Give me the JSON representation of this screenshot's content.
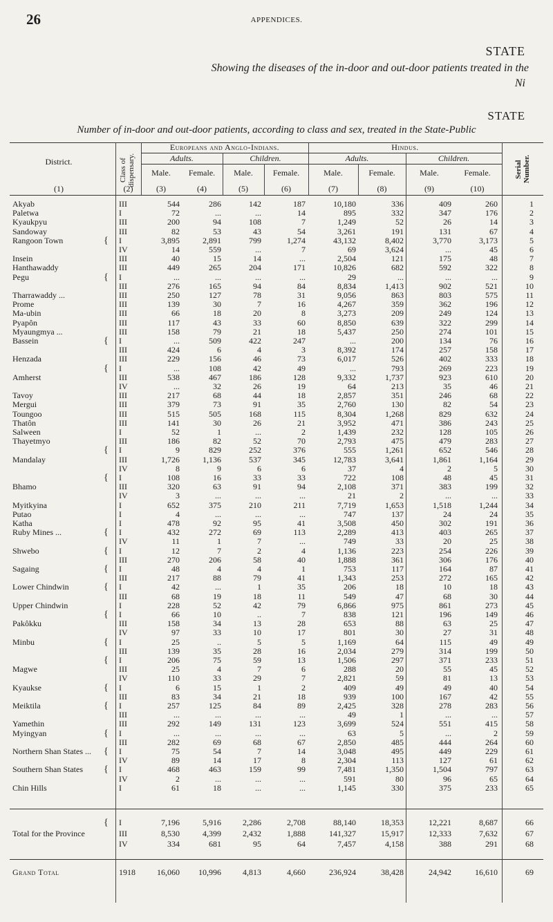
{
  "page": {
    "number": "26",
    "running_head": "APPENDICES.",
    "state_top": "STATE",
    "caption_top": "Showing the diseases of the in-door and out-door patients treated in the",
    "ni": "Ni",
    "state_bottom": "STATE",
    "caption_main": "Number of in-door and out-door patients, according to class and sex, treated in the State-Public"
  },
  "header": {
    "district": "District.",
    "class_of_dispensary": "Class of dispensary.",
    "europeans": "Europeans and Anglo-Indians.",
    "hindus": "Hindus.",
    "adults": "Adults.",
    "children": "Children.",
    "male": "Male.",
    "female": "Female.",
    "serial_number": "Serial Number.",
    "col_nums": [
      "(1)",
      "(2)",
      "(3)",
      "(4)",
      "(5)",
      "(6)",
      "(7)",
      "(8)",
      "(9)",
      "(10)"
    ]
  },
  "rows": [
    {
      "district": "Akyab",
      "brace": "",
      "cls": "III",
      "c3": "544",
      "c4": "286",
      "c5": "142",
      "c6": "187",
      "c7": "10,180",
      "c8": "336",
      "c9": "409",
      "c10": "260",
      "serial": "1"
    },
    {
      "district": "Paletwa",
      "brace": "",
      "cls": "I",
      "c3": "72",
      "c4": "...",
      "c5": "...",
      "c6": "14",
      "c7": "895",
      "c8": "332",
      "c9": "347",
      "c10": "176",
      "serial": "2"
    },
    {
      "district": "Kyaukpyu",
      "brace": "",
      "cls": "III",
      "c3": "200",
      "c4": "94",
      "c5": "108",
      "c6": "7",
      "c7": "1,249",
      "c8": "52",
      "c9": "26",
      "c10": "14",
      "serial": "3"
    },
    {
      "district": "Sandoway",
      "brace": "",
      "cls": "III",
      "c3": "82",
      "c4": "53",
      "c5": "43",
      "c6": "54",
      "c7": "3,261",
      "c8": "191",
      "c9": "131",
      "c10": "67",
      "serial": "4"
    },
    {
      "district": "Rangoon Town",
      "brace": "{",
      "cls": "I",
      "c3": "3,895",
      "c4": "2,891",
      "c5": "799",
      "c6": "1,274",
      "c7": "43,132",
      "c8": "8,402",
      "c9": "3,770",
      "c10": "3,173",
      "serial": "5"
    },
    {
      "district": "",
      "brace": "",
      "cls": "IV",
      "c3": "14",
      "c4": "559",
      "c5": "...",
      "c6": "7",
      "c7": "69",
      "c8": "3,624",
      "c9": "...",
      "c10": "45",
      "serial": "6"
    },
    {
      "district": "Insein",
      "brace": "",
      "cls": "III",
      "c3": "40",
      "c4": "15",
      "c5": "14",
      "c6": "...",
      "c7": "2,504",
      "c8": "121",
      "c9": "175",
      "c10": "48",
      "serial": "7"
    },
    {
      "district": "Hanthawaddy",
      "brace": "",
      "cls": "III",
      "c3": "449",
      "c4": "265",
      "c5": "204",
      "c6": "171",
      "c7": "10,826",
      "c8": "682",
      "c9": "592",
      "c10": "322",
      "serial": "8"
    },
    {
      "district": "Pegu",
      "brace": "{",
      "cls": "I",
      "c3": "...",
      "c4": "...",
      "c5": "...",
      "c6": "...",
      "c7": "29",
      "c8": "...",
      "c9": "...",
      "c10": "...",
      "serial": "9"
    },
    {
      "district": "",
      "brace": "",
      "cls": "III",
      "c3": "276",
      "c4": "165",
      "c5": "94",
      "c6": "84",
      "c7": "8,834",
      "c8": "1,413",
      "c9": "902",
      "c10": "521",
      "serial": "10"
    },
    {
      "district": "Tharrawaddy ...",
      "brace": "",
      "cls": "III",
      "c3": "250",
      "c4": "127",
      "c5": "78",
      "c6": "31",
      "c7": "9,056",
      "c8": "863",
      "c9": "803",
      "c10": "575",
      "serial": "11"
    },
    {
      "district": "Prome",
      "brace": "",
      "cls": "III",
      "c3": "139",
      "c4": "30",
      "c5": "7",
      "c6": "16",
      "c7": "4,267",
      "c8": "359",
      "c9": "362",
      "c10": "196",
      "serial": "12"
    },
    {
      "district": "Ma-ubin",
      "brace": "",
      "cls": "III",
      "c3": "66",
      "c4": "18",
      "c5": "20",
      "c6": "8",
      "c7": "3,273",
      "c8": "209",
      "c9": "249",
      "c10": "124",
      "serial": "13"
    },
    {
      "district": "Pyapôn",
      "brace": "",
      "cls": "III",
      "c3": "117",
      "c4": "43",
      "c5": "33",
      "c6": "60",
      "c7": "8,850",
      "c8": "639",
      "c9": "322",
      "c10": "299",
      "serial": "14"
    },
    {
      "district": "Myaungmya ...",
      "brace": "",
      "cls": "III",
      "c3": "158",
      "c4": "79",
      "c5": "21",
      "c6": "18",
      "c7": "5,437",
      "c8": "250",
      "c9": "274",
      "c10": "101",
      "serial": "15"
    },
    {
      "district": "Bassein",
      "brace": "{",
      "cls": "I",
      "c3": "...",
      "c4": "509",
      "c5": "422",
      "c6": "247",
      "c7": "...",
      "c8": "200",
      "c9": "134",
      "c10": "76",
      "serial": "16"
    },
    {
      "district": "",
      "brace": "",
      "cls": "III",
      "c3": "424",
      "c4": "6",
      "c5": "4",
      "c6": "3",
      "c7": "8,392",
      "c8": "174",
      "c9": "257",
      "c10": "158",
      "serial": "17"
    },
    {
      "district": "Henzada",
      "brace": "",
      "cls": "III",
      "c3": "229",
      "c4": "156",
      "c5": "46",
      "c6": "73",
      "c7": "6,017",
      "c8": "526",
      "c9": "402",
      "c10": "333",
      "serial": "18"
    },
    {
      "district": "",
      "brace": "{",
      "cls": "I",
      "c3": "...",
      "c4": "108",
      "c5": "42",
      "c6": "49",
      "c7": "...",
      "c8": "793",
      "c9": "269",
      "c10": "223",
      "serial": "19"
    },
    {
      "district": "Amherst",
      "brace": "",
      "cls": "III",
      "c3": "538",
      "c4": "467",
      "c5": "186",
      "c6": "128",
      "c7": "9,332",
      "c8": "1,737",
      "c9": "923",
      "c10": "610",
      "serial": "20"
    },
    {
      "district": "",
      "brace": "",
      "cls": "IV",
      "c3": "...",
      "c4": "32",
      "c5": "26",
      "c6": "19",
      "c7": "64",
      "c8": "213",
      "c9": "35",
      "c10": "46",
      "serial": "21"
    },
    {
      "district": "Tavoy",
      "brace": "",
      "cls": "III",
      "c3": "217",
      "c4": "68",
      "c5": "44",
      "c6": "18",
      "c7": "2,857",
      "c8": "351",
      "c9": "246",
      "c10": "68",
      "serial": "22"
    },
    {
      "district": "Mergui",
      "brace": "",
      "cls": "III",
      "c3": "379",
      "c4": "73",
      "c5": "91",
      "c6": "35",
      "c7": "2,760",
      "c8": "130",
      "c9": "82",
      "c10": "54",
      "serial": "23"
    },
    {
      "district": "Toungoo",
      "brace": "",
      "cls": "III",
      "c3": "515",
      "c4": "505",
      "c5": "168",
      "c6": "115",
      "c7": "8,304",
      "c8": "1,268",
      "c9": "829",
      "c10": "632",
      "serial": "24"
    },
    {
      "district": "Thatôn",
      "brace": "",
      "cls": "III",
      "c3": "141",
      "c4": "30",
      "c5": "26",
      "c6": "21",
      "c7": "3,952",
      "c8": "471",
      "c9": "386",
      "c10": "243",
      "serial": "25"
    },
    {
      "district": "Salween",
      "brace": "",
      "cls": "I",
      "c3": "52",
      "c4": "1",
      "c5": "...",
      "c6": "2",
      "c7": "1,439",
      "c8": "232",
      "c9": "128",
      "c10": "105",
      "serial": "26"
    },
    {
      "district": "Thayetmyo",
      "brace": "",
      "cls": "III",
      "c3": "186",
      "c4": "82",
      "c5": "52",
      "c6": "70",
      "c7": "2,793",
      "c8": "475",
      "c9": "479",
      "c10": "283",
      "serial": "27"
    },
    {
      "district": "",
      "brace": "{",
      "cls": "I",
      "c3": "9",
      "c4": "829",
      "c5": "252",
      "c6": "376",
      "c7": "555",
      "c8": "1,261",
      "c9": "652",
      "c10": "546",
      "serial": "28"
    },
    {
      "district": "Mandalay",
      "brace": "",
      "cls": "III",
      "c3": "1,726",
      "c4": "1,136",
      "c5": "537",
      "c6": "345",
      "c7": "12,783",
      "c8": "3,641",
      "c9": "1,861",
      "c10": "1,164",
      "serial": "29"
    },
    {
      "district": "",
      "brace": "",
      "cls": "IV",
      "c3": "8",
      "c4": "9",
      "c5": "6",
      "c6": "6",
      "c7": "37",
      "c8": "4",
      "c9": "2",
      "c10": "5",
      "serial": "30"
    },
    {
      "district": "",
      "brace": "{",
      "cls": "I",
      "c3": "108",
      "c4": "16",
      "c5": "33",
      "c6": "33",
      "c7": "722",
      "c8": "108",
      "c9": "48",
      "c10": "45",
      "serial": "31"
    },
    {
      "district": "Bhamo",
      "brace": "",
      "cls": "III",
      "c3": "320",
      "c4": "63",
      "c5": "91",
      "c6": "94",
      "c7": "2,108",
      "c8": "371",
      "c9": "383",
      "c10": "199",
      "serial": "32"
    },
    {
      "district": "",
      "brace": "",
      "cls": "IV",
      "c3": "3",
      "c4": "...",
      "c5": "...",
      "c6": "...",
      "c7": "21",
      "c8": "2",
      "c9": "...",
      "c10": "...",
      "serial": "33"
    },
    {
      "district": "Myitkyina",
      "brace": "",
      "cls": "I",
      "c3": "652",
      "c4": "375",
      "c5": "210",
      "c6": "211",
      "c7": "7,719",
      "c8": "1,653",
      "c9": "1,518",
      "c10": "1,244",
      "serial": "34"
    },
    {
      "district": "Putao",
      "brace": "",
      "cls": "I",
      "c3": "4",
      "c4": "...",
      "c5": "...",
      "c6": "...",
      "c7": "747",
      "c8": "137",
      "c9": "24",
      "c10": "24",
      "serial": "35"
    },
    {
      "district": "Katha",
      "brace": "",
      "cls": "I",
      "c3": "478",
      "c4": "92",
      "c5": "95",
      "c6": "41",
      "c7": "3,508",
      "c8": "450",
      "c9": "302",
      "c10": "191",
      "serial": "36"
    },
    {
      "district": "Ruby Mines ...",
      "brace": "{",
      "cls": "I",
      "c3": "432",
      "c4": "272",
      "c5": "69",
      "c6": "113",
      "c7": "2,289",
      "c8": "413",
      "c9": "403",
      "c10": "265",
      "serial": "37"
    },
    {
      "district": "",
      "brace": "",
      "cls": "IV",
      "c3": "11",
      "c4": "1",
      "c5": "7",
      "c6": "...",
      "c7": "749",
      "c8": "33",
      "c9": "20",
      "c10": "25",
      "serial": "38"
    },
    {
      "district": "Shwebo",
      "brace": "{",
      "cls": "I",
      "c3": "12",
      "c4": "7",
      "c5": "2",
      "c6": "4",
      "c7": "1,136",
      "c8": "223",
      "c9": "254",
      "c10": "226",
      "serial": "39"
    },
    {
      "district": "",
      "brace": "",
      "cls": "III",
      "c3": "270",
      "c4": "206",
      "c5": "58",
      "c6": "40",
      "c7": "1,888",
      "c8": "361",
      "c9": "306",
      "c10": "176",
      "serial": "40"
    },
    {
      "district": "Sagaing",
      "brace": "{",
      "cls": "I",
      "c3": "48",
      "c4": "4",
      "c5": "4",
      "c6": "1",
      "c7": "753",
      "c8": "117",
      "c9": "164",
      "c10": "87",
      "serial": "41"
    },
    {
      "district": "",
      "brace": "",
      "cls": "III",
      "c3": "217",
      "c4": "88",
      "c5": "79",
      "c6": "41",
      "c7": "1,343",
      "c8": "253",
      "c9": "272",
      "c10": "165",
      "serial": "42"
    },
    {
      "district": "Lower Chindwin",
      "brace": "{",
      "cls": "I",
      "c3": "42",
      "c4": "...",
      "c5": "1",
      "c6": "35",
      "c7": "206",
      "c8": "18",
      "c9": "10",
      "c10": "18",
      "serial": "43"
    },
    {
      "district": "",
      "brace": "",
      "cls": "III",
      "c3": "68",
      "c4": "19",
      "c5": "18",
      "c6": "11",
      "c7": "549",
      "c8": "47",
      "c9": "68",
      "c10": "30",
      "serial": "44"
    },
    {
      "district": "Upper Chindwin",
      "brace": "",
      "cls": "I",
      "c3": "228",
      "c4": "52",
      "c5": "42",
      "c6": "79",
      "c7": "6,866",
      "c8": "975",
      "c9": "861",
      "c10": "273",
      "serial": "45"
    },
    {
      "district": "",
      "brace": "{",
      "cls": "I",
      "c3": "66",
      "c4": "10",
      "c5": "..",
      "c6": "7",
      "c7": "838",
      "c8": "121",
      "c9": "196",
      "c10": "149",
      "serial": "46"
    },
    {
      "district": "Pakôkku",
      "brace": "",
      "cls": "III",
      "c3": "158",
      "c4": "34",
      "c5": "13",
      "c6": "28",
      "c7": "653",
      "c8": "88",
      "c9": "63",
      "c10": "25",
      "serial": "47"
    },
    {
      "district": "",
      "brace": "",
      "cls": "IV",
      "c3": "97",
      "c4": "33",
      "c5": "10",
      "c6": "17",
      "c7": "801",
      "c8": "30",
      "c9": "27",
      "c10": "31",
      "serial": "48"
    },
    {
      "district": "Minbu",
      "brace": "{",
      "cls": "I",
      "c3": "25",
      "c4": "..",
      "c5": "5",
      "c6": "5",
      "c7": "1,169",
      "c8": "64",
      "c9": "115",
      "c10": "49",
      "serial": "49"
    },
    {
      "district": "",
      "brace": "",
      "cls": "III",
      "c3": "139",
      "c4": "35",
      "c5": "28",
      "c6": "16",
      "c7": "2,034",
      "c8": "279",
      "c9": "314",
      "c10": "199",
      "serial": "50"
    },
    {
      "district": "",
      "brace": "{",
      "cls": "I",
      "c3": "206",
      "c4": "75",
      "c5": "59",
      "c6": "13",
      "c7": "1,506",
      "c8": "297",
      "c9": "371",
      "c10": "233",
      "serial": "51"
    },
    {
      "district": "Magwe",
      "brace": "",
      "cls": "III",
      "c3": "25",
      "c4": "4",
      "c5": "7",
      "c6": "6",
      "c7": "288",
      "c8": "20",
      "c9": "55",
      "c10": "45",
      "serial": "52"
    },
    {
      "district": "",
      "brace": "",
      "cls": "IV",
      "c3": "110",
      "c4": "33",
      "c5": "29",
      "c6": "7",
      "c7": "2,821",
      "c8": "59",
      "c9": "81",
      "c10": "13",
      "serial": "53"
    },
    {
      "district": "Kyaukse",
      "brace": "{",
      "cls": "I",
      "c3": "6",
      "c4": "15",
      "c5": "1",
      "c6": "2",
      "c7": "409",
      "c8": "49",
      "c9": "49",
      "c10": "40",
      "serial": "54"
    },
    {
      "district": "",
      "brace": "",
      "cls": "III",
      "c3": "83",
      "c4": "34",
      "c5": "21",
      "c6": "18",
      "c7": "939",
      "c8": "100",
      "c9": "167",
      "c10": "42",
      "serial": "55"
    },
    {
      "district": "Meiktila",
      "brace": "{",
      "cls": "I",
      "c3": "257",
      "c4": "125",
      "c5": "84",
      "c6": "89",
      "c7": "2,425",
      "c8": "328",
      "c9": "278",
      "c10": "283",
      "serial": "56"
    },
    {
      "district": "",
      "brace": "",
      "cls": "III",
      "c3": "...",
      "c4": "...",
      "c5": "...",
      "c6": "...",
      "c7": "49",
      "c8": "1",
      "c9": "...",
      "c10": "...",
      "serial": "57"
    },
    {
      "district": "Yamethin",
      "brace": "",
      "cls": "III",
      "c3": "292",
      "c4": "149",
      "c5": "131",
      "c6": "123",
      "c7": "3,699",
      "c8": "524",
      "c9": "551",
      "c10": "415",
      "serial": "58"
    },
    {
      "district": "Myingyan",
      "brace": "{",
      "cls": "I",
      "c3": "...",
      "c4": "...",
      "c5": "...",
      "c6": "...",
      "c7": "63",
      "c8": "5",
      "c9": "...",
      "c10": "2",
      "serial": "59"
    },
    {
      "district": "",
      "brace": "",
      "cls": "III",
      "c3": "282",
      "c4": "69",
      "c5": "68",
      "c6": "67",
      "c7": "2,850",
      "c8": "485",
      "c9": "444",
      "c10": "264",
      "serial": "60"
    },
    {
      "district": "Northern Shan States ...",
      "brace": "{",
      "cls": "I",
      "c3": "75",
      "c4": "54",
      "c5": "7",
      "c6": "14",
      "c7": "3,048",
      "c8": "495",
      "c9": "449",
      "c10": "229",
      "serial": "61"
    },
    {
      "district": "",
      "brace": "",
      "cls": "IV",
      "c3": "89",
      "c4": "14",
      "c5": "17",
      "c6": "8",
      "c7": "2,304",
      "c8": "113",
      "c9": "127",
      "c10": "61",
      "serial": "62"
    },
    {
      "district": "Southern Shan States",
      "brace": "{",
      "cls": "I",
      "c3": "468",
      "c4": "463",
      "c5": "159",
      "c6": "99",
      "c7": "7,481",
      "c8": "1,350",
      "c9": "1,504",
      "c10": "797",
      "serial": "63"
    },
    {
      "district": "",
      "brace": "",
      "cls": "IV",
      "c3": "2",
      "c4": "...",
      "c5": "...",
      "c6": "...",
      "c7": "591",
      "c8": "80",
      "c9": "96",
      "c10": "65",
      "serial": "64"
    },
    {
      "district": "Chin Hills",
      "brace": "",
      "cls": "I",
      "c3": "61",
      "c4": "18",
      "c5": "...",
      "c6": "...",
      "c7": "1,145",
      "c8": "330",
      "c9": "375",
      "c10": "233",
      "serial": "65"
    }
  ],
  "totals": [
    {
      "district": "",
      "brace": "{",
      "cls": "I",
      "c3": "7,196",
      "c4": "5,916",
      "c5": "2,286",
      "c6": "2,708",
      "c7": "88,140",
      "c8": "18,353",
      "c9": "12,221",
      "c10": "8,687",
      "serial": "66"
    },
    {
      "district": "Total for the Province",
      "brace": "",
      "cls": "III",
      "c3": "8,530",
      "c4": "4,399",
      "c5": "2,432",
      "c6": "1,888",
      "c7": "141,327",
      "c8": "15,917",
      "c9": "12,333",
      "c10": "7,632",
      "serial": "67"
    },
    {
      "district": "",
      "brace": "",
      "cls": "IV",
      "c3": "334",
      "c4": "681",
      "c5": "95",
      "c6": "64",
      "c7": "7,457",
      "c8": "4,158",
      "c9": "388",
      "c10": "291",
      "serial": "68"
    }
  ],
  "grand_total": {
    "district": "Grand Total",
    "cls": "1918",
    "c3": "16,060",
    "c4": "10,996",
    "c5": "4,813",
    "c6": "4,660",
    "c7": "236,924",
    "c8": "38,428",
    "c9": "24,942",
    "c10": "16,610",
    "serial": "69"
  }
}
